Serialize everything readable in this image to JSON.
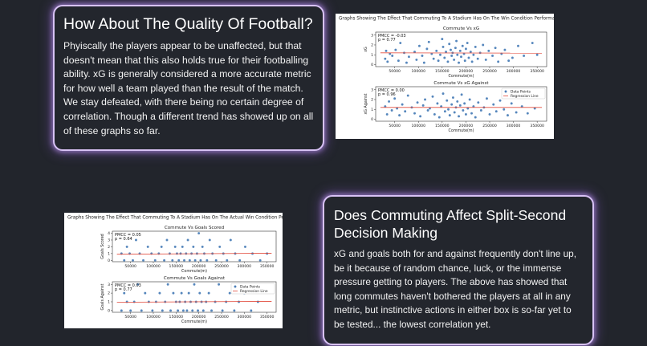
{
  "top_card": {
    "title": "How About The Quality Of Football?",
    "body": "Phyiscally the players appear to be unaffected, but that doesn't mean that this also holds true for their footballing ability. xG is generally considered a more accurate metric for how well a team played than the result of the match. We stay defeated, with there being no certain degree of correlation. Though a different trend has showed up on all of these graphs so far."
  },
  "bottom_card": {
    "title": "Does Commuting Affect Split-Second Decision Making",
    "body": "xG and goals both for and against frequently don't line up, be it because of random chance, luck, or the immense pressure getting to players. The above has showed that long commutes haven't bothered the players at all in any metric, but instinctive actions in either box is so-far yet to be tested... the lowest correlation yet."
  },
  "colors": {
    "background": "#22252c",
    "card_border": "#d8c2f5",
    "points": "#4c7fb8",
    "regression": "#e24a3b"
  },
  "chart_data": [
    {
      "figure_title": "Graphs Showing The Effect That Commuting To A Stadium Has On The Win Condition Performance",
      "panels": [
        {
          "type": "scatter",
          "title": "Commute Vs xG",
          "xlabel": "Commute(m)",
          "ylabel": "xG",
          "annotation": [
            "PMCC = -0.03",
            "p = 0.77"
          ],
          "xlim": [
            10000,
            370000
          ],
          "ylim": [
            -0.2,
            3.3
          ],
          "xticks": [
            50000,
            100000,
            150000,
            200000,
            250000,
            300000,
            350000
          ],
          "yticks": [
            0,
            1,
            2,
            3
          ],
          "regression": [
            1.2,
            1.17
          ],
          "legend": "",
          "points": [
            [
              30000,
              0.6
            ],
            [
              32000,
              1.4
            ],
            [
              35000,
              0.3
            ],
            [
              40000,
              1.1
            ],
            [
              45000,
              0.9
            ],
            [
              52000,
              1.5
            ],
            [
              58000,
              0.4
            ],
            [
              62000,
              2.2
            ],
            [
              70000,
              1.2
            ],
            [
              75000,
              0.2
            ],
            [
              80000,
              0.8
            ],
            [
              92000,
              1.3
            ],
            [
              96000,
              0.5
            ],
            [
              102000,
              1.9
            ],
            [
              108000,
              0.9
            ],
            [
              112000,
              0.2
            ],
            [
              118000,
              1.6
            ],
            [
              122000,
              2.3
            ],
            [
              128000,
              1.1
            ],
            [
              132000,
              0.6
            ],
            [
              138000,
              1.4
            ],
            [
              142000,
              0.4
            ],
            [
              146000,
              1.0
            ],
            [
              150000,
              2.6
            ],
            [
              152000,
              1.8
            ],
            [
              155000,
              0.7
            ],
            [
              158000,
              1.3
            ],
            [
              162000,
              0.3
            ],
            [
              165000,
              2.1
            ],
            [
              168000,
              1.5
            ],
            [
              170000,
              0.9
            ],
            [
              172000,
              1.2
            ],
            [
              175000,
              0.5
            ],
            [
              178000,
              1.7
            ],
            [
              180000,
              2.4
            ],
            [
              182000,
              1.0
            ],
            [
              185000,
              0.2
            ],
            [
              188000,
              1.4
            ],
            [
              190000,
              0.8
            ],
            [
              193000,
              1.9
            ],
            [
              196000,
              1.1
            ],
            [
              198000,
              0.4
            ],
            [
              200000,
              1.6
            ],
            [
              203000,
              2.2
            ],
            [
              206000,
              0.7
            ],
            [
              210000,
              1.3
            ],
            [
              213000,
              0.3
            ],
            [
              216000,
              1.0
            ],
            [
              220000,
              1.8
            ],
            [
              225000,
              0.6
            ],
            [
              230000,
              1.2
            ],
            [
              236000,
              2.0
            ],
            [
              242000,
              0.5
            ],
            [
              248000,
              1.4
            ],
            [
              256000,
              0.9
            ],
            [
              262000,
              1.7
            ],
            [
              268000,
              0.3
            ],
            [
              275000,
              1.1
            ],
            [
              282000,
              1.5
            ],
            [
              290000,
              0.4
            ],
            [
              298000,
              0.7
            ],
            [
              310000,
              1.9
            ],
            [
              322000,
              0.9
            ],
            [
              340000,
              2.2
            ],
            [
              350000,
              1.0
            ]
          ]
        },
        {
          "type": "scatter",
          "title": "Commute Vs xG Against",
          "xlabel": "Commute(m)",
          "ylabel": "xG Against",
          "annotation": [
            "PMCC = 0.00",
            "p = 0.96"
          ],
          "xlim": [
            10000,
            370000
          ],
          "ylim": [
            -0.2,
            3.3
          ],
          "xticks": [
            50000,
            100000,
            150000,
            200000,
            250000,
            300000,
            350000
          ],
          "yticks": [
            0,
            1,
            2,
            3
          ],
          "regression": [
            1.2,
            1.2
          ],
          "legend": "top-right",
          "legend_labels": [
            "Data Points",
            "Regression Line"
          ],
          "points": [
            [
              30000,
              1.3
            ],
            [
              34000,
              0.5
            ],
            [
              38000,
              1.8
            ],
            [
              44000,
              0.9
            ],
            [
              50000,
              2.1
            ],
            [
              55000,
              1.1
            ],
            [
              60000,
              0.4
            ],
            [
              66000,
              1.5
            ],
            [
              72000,
              0.8
            ],
            [
              78000,
              2.4
            ],
            [
              86000,
              1.2
            ],
            [
              92000,
              0.6
            ],
            [
              98000,
              1.7
            ],
            [
              104000,
              0.3
            ],
            [
              110000,
              1.4
            ],
            [
              114000,
              2.0
            ],
            [
              120000,
              0.9
            ],
            [
              124000,
              1.1
            ],
            [
              130000,
              2.3
            ],
            [
              134000,
              0.5
            ],
            [
              140000,
              1.6
            ],
            [
              144000,
              0.2
            ],
            [
              148000,
              1.3
            ],
            [
              152000,
              2.6
            ],
            [
              156000,
              0.8
            ],
            [
              160000,
              1.9
            ],
            [
              163000,
              1.0
            ],
            [
              166000,
              0.4
            ],
            [
              170000,
              1.5
            ],
            [
              173000,
              2.2
            ],
            [
              176000,
              0.7
            ],
            [
              179000,
              1.2
            ],
            [
              182000,
              1.8
            ],
            [
              185000,
              0.3
            ],
            [
              188000,
              1.4
            ],
            [
              191000,
              2.5
            ],
            [
              194000,
              0.9
            ],
            [
              197000,
              1.6
            ],
            [
              200000,
              0.5
            ],
            [
              204000,
              1.1
            ],
            [
              208000,
              2.0
            ],
            [
              212000,
              0.6
            ],
            [
              216000,
              1.3
            ],
            [
              220000,
              0.2
            ],
            [
              226000,
              1.7
            ],
            [
              232000,
              0.9
            ],
            [
              238000,
              1.2
            ],
            [
              244000,
              2.1
            ],
            [
              250000,
              0.5
            ],
            [
              258000,
              1.5
            ],
            [
              264000,
              0.8
            ],
            [
              272000,
              1.9
            ],
            [
              280000,
              1.0
            ],
            [
              288000,
              0.4
            ],
            [
              296000,
              1.6
            ],
            [
              306000,
              0.7
            ],
            [
              318000,
              1.3
            ],
            [
              330000,
              0.6
            ],
            [
              345000,
              1.1
            ]
          ]
        }
      ]
    },
    {
      "figure_title": "Graphs Showing The Effect That Commuting To A Stadium Has On The Actual Win Condition Performance",
      "panels": [
        {
          "type": "scatter",
          "title": "Commute Vs Goals Scored",
          "xlabel": "Commute(m)",
          "ylabel": "Goals Scored",
          "annotation": [
            "PMCC = 0.05",
            "p = 0.64"
          ],
          "xlim": [
            10000,
            370000
          ],
          "ylim": [
            -0.2,
            4.3
          ],
          "xticks": [
            50000,
            100000,
            150000,
            200000,
            250000,
            300000,
            350000
          ],
          "yticks": [
            0,
            1,
            2,
            3,
            4
          ],
          "regression": [
            0.9,
            1.05
          ],
          "legend": "",
          "points": [
            [
              30000,
              1
            ],
            [
              36000,
              0
            ],
            [
              42000,
              2
            ],
            [
              48000,
              1
            ],
            [
              55000,
              0
            ],
            [
              62000,
              3
            ],
            [
              70000,
              1
            ],
            [
              78000,
              0
            ],
            [
              88000,
              2
            ],
            [
              96000,
              1
            ],
            [
              104000,
              0
            ],
            [
              112000,
              1
            ],
            [
              118000,
              2
            ],
            [
              124000,
              0
            ],
            [
              130000,
              3
            ],
            [
              136000,
              1
            ],
            [
              142000,
              0
            ],
            [
              148000,
              2
            ],
            [
              152000,
              1
            ],
            [
              156000,
              0
            ],
            [
              160000,
              1
            ],
            [
              164000,
              2
            ],
            [
              168000,
              0
            ],
            [
              172000,
              1
            ],
            [
              176000,
              3
            ],
            [
              180000,
              0
            ],
            [
              184000,
              1
            ],
            [
              188000,
              2
            ],
            [
              192000,
              0
            ],
            [
              196000,
              1
            ],
            [
              200000,
              4
            ],
            [
              204000,
              0
            ],
            [
              208000,
              2
            ],
            [
              212000,
              1
            ],
            [
              218000,
              0
            ],
            [
              224000,
              3
            ],
            [
              230000,
              1
            ],
            [
              238000,
              0
            ],
            [
              246000,
              2
            ],
            [
              254000,
              1
            ],
            [
              262000,
              0
            ],
            [
              270000,
              3
            ],
            [
              280000,
              1
            ],
            [
              290000,
              0
            ],
            [
              302000,
              2
            ],
            [
              318000,
              1
            ],
            [
              335000,
              0
            ],
            [
              350000,
              1
            ]
          ]
        },
        {
          "type": "scatter",
          "title": "Commute Vs Goals Against",
          "xlabel": "Commute(m)",
          "ylabel": "Goals Against",
          "annotation": [
            "PMCC = 0.03",
            "p = 0.77"
          ],
          "xlim": [
            10000,
            370000
          ],
          "ylim": [
            -0.2,
            3.3
          ],
          "xticks": [
            50000,
            100000,
            150000,
            200000,
            250000,
            300000,
            350000
          ],
          "yticks": [
            0,
            1,
            2,
            3
          ],
          "regression": [
            0.95,
            1.05
          ],
          "legend": "top-right",
          "legend_labels": [
            "Data Points",
            "Regression Line"
          ],
          "points": [
            [
              30000,
              0
            ],
            [
              36000,
              2
            ],
            [
              42000,
              1
            ],
            [
              50000,
              0
            ],
            [
              58000,
              1
            ],
            [
              66000,
              3
            ],
            [
              74000,
              0
            ],
            [
              82000,
              2
            ],
            [
              90000,
              1
            ],
            [
              98000,
              0
            ],
            [
              106000,
              1
            ],
            [
              114000,
              2
            ],
            [
              120000,
              0
            ],
            [
              126000,
              1
            ],
            [
              132000,
              3
            ],
            [
              138000,
              0
            ],
            [
              144000,
              2
            ],
            [
              150000,
              1
            ],
            [
              154000,
              0
            ],
            [
              158000,
              1
            ],
            [
              162000,
              2
            ],
            [
              166000,
              0
            ],
            [
              170000,
              1
            ],
            [
              174000,
              0
            ],
            [
              178000,
              2
            ],
            [
              182000,
              1
            ],
            [
              186000,
              0
            ],
            [
              190000,
              3
            ],
            [
              194000,
              1
            ],
            [
              198000,
              0
            ],
            [
              202000,
              2
            ],
            [
              206000,
              1
            ],
            [
              210000,
              0
            ],
            [
              216000,
              1
            ],
            [
              222000,
              2
            ],
            [
              228000,
              0
            ],
            [
              236000,
              1
            ],
            [
              244000,
              3
            ],
            [
              252000,
              0
            ],
            [
              260000,
              1
            ],
            [
              268000,
              2
            ],
            [
              278000,
              0
            ],
            [
              288000,
              1
            ],
            [
              300000,
              2
            ],
            [
              315000,
              0
            ],
            [
              330000,
              1
            ]
          ]
        }
      ]
    }
  ]
}
